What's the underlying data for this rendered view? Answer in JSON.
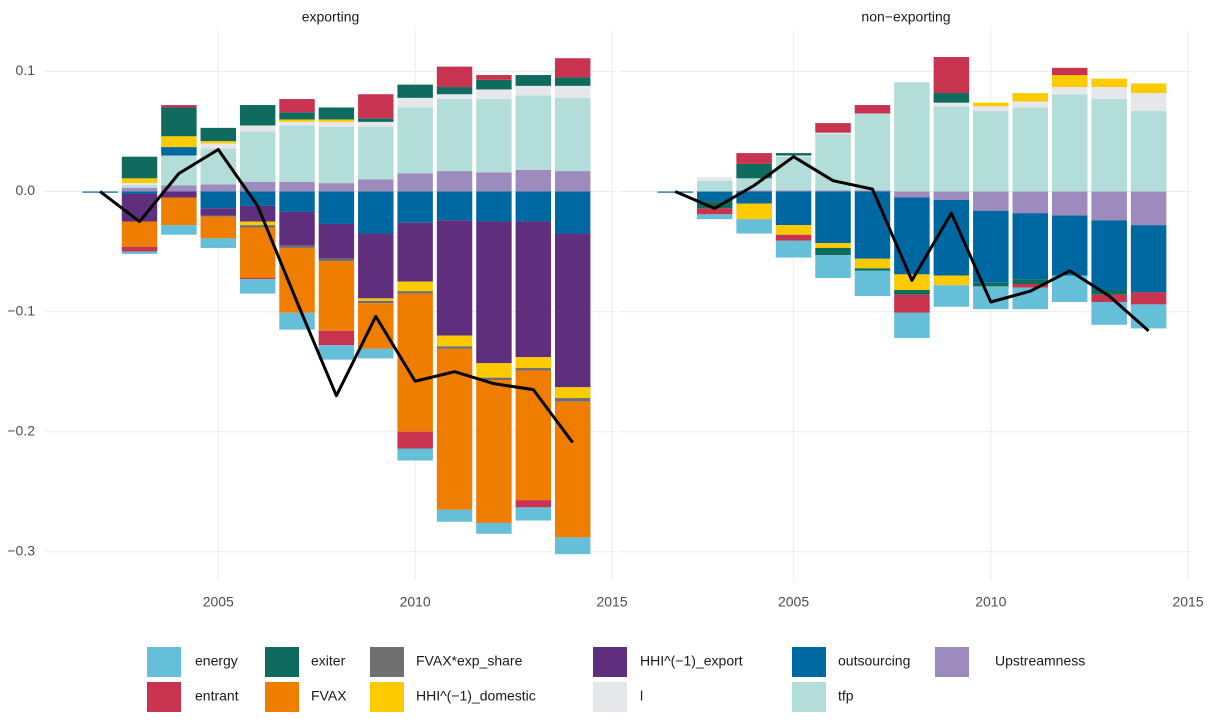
{
  "chart_data": [
    {
      "type": "bar",
      "stacked": true,
      "title": "exporting",
      "x": [
        2002,
        2003,
        2004,
        2005,
        2006,
        2007,
        2008,
        2009,
        2010,
        2011,
        2012,
        2013,
        2014
      ],
      "xlim": [
        2000.6,
        2015.1
      ],
      "xticks": [
        2005,
        2010,
        2015
      ],
      "ylim": [
        -0.3235,
        0.1345
      ],
      "yticks": [
        {
          "value": -0.3,
          "label": "−0.3"
        },
        {
          "value": -0.2,
          "label": "−0.2"
        },
        {
          "value": -0.1,
          "label": "−0.1"
        },
        {
          "value": 0,
          "label": "0.0"
        },
        {
          "value": 0.1,
          "label": "0.1"
        }
      ],
      "grid": true,
      "series": [
        {
          "name": "energy",
          "color": "#66bfd8",
          "values": [
            0,
            -0.002,
            -0.008,
            -0.008,
            -0.012,
            -0.014,
            -0.012,
            -0.008,
            -0.01,
            -0.01,
            -0.009,
            -0.011,
            -0.014
          ]
        },
        {
          "name": "entrant",
          "color": "#c8334f",
          "values": [
            0,
            -0.004,
            0.002,
            0,
            -0.001,
            0.011,
            -0.012,
            0.02,
            -0.014,
            0.017,
            0.004,
            -0.006,
            0.016
          ]
        },
        {
          "name": "exiter",
          "color": "#0e6b5e",
          "values": [
            0,
            0.018,
            0.024,
            0.011,
            0.017,
            0.006,
            0.01,
            0.003,
            0.011,
            0.006,
            0.008,
            0.009,
            0.007
          ]
        },
        {
          "name": "FVAX",
          "color": "#ee7d00",
          "values": [
            0,
            -0.021,
            -0.023,
            -0.018,
            -0.042,
            -0.054,
            -0.058,
            -0.038,
            -0.115,
            -0.134,
            -0.119,
            -0.108,
            -0.113
          ]
        },
        {
          "name": "FVAX*exp_share",
          "color": "#6f6f6f",
          "values": [
            0,
            0,
            0,
            -0.001,
            -0.002,
            -0.002,
            -0.002,
            -0.002,
            -0.002,
            -0.002,
            -0.002,
            -0.002,
            -0.003
          ]
        },
        {
          "name": "HHI^(−1)_domestic",
          "color": "#fbcb00",
          "values": [
            0,
            0.004,
            0.009,
            0.002,
            -0.003,
            0.002,
            0.002,
            -0.002,
            -0.008,
            -0.009,
            -0.012,
            -0.009,
            -0.009
          ]
        },
        {
          "name": "HHI^(−1)_export",
          "color": "#5f2f7d",
          "values": [
            0,
            -0.023,
            -0.005,
            -0.006,
            -0.013,
            -0.028,
            -0.029,
            -0.054,
            -0.049,
            -0.096,
            -0.118,
            -0.113,
            -0.128
          ]
        },
        {
          "name": "l",
          "color": "#e6e7ea",
          "values": [
            0,
            0.002,
            0,
            0.004,
            0.005,
            0.003,
            0.004,
            0.004,
            0.008,
            0.004,
            0.008,
            0.008,
            0.01
          ]
        },
        {
          "name": "outsourcing",
          "color": "#0068a1",
          "values": [
            -0.001,
            -0.002,
            0.007,
            -0.014,
            -0.012,
            -0.017,
            -0.027,
            -0.035,
            -0.026,
            -0.024,
            -0.025,
            -0.025,
            -0.035
          ]
        },
        {
          "name": "tfp",
          "color": "#b3ddd8",
          "values": [
            0,
            0.002,
            0.025,
            0.03,
            0.042,
            0.047,
            0.047,
            0.044,
            0.055,
            0.06,
            0.061,
            0.062,
            0.061
          ]
        },
        {
          "name": "Upstreamness",
          "color": "#9e8bbd",
          "values": [
            0,
            0.003,
            0.005,
            0.006,
            0.008,
            0.008,
            0.007,
            0.01,
            0.015,
            0.017,
            0.016,
            0.018,
            0.017
          ]
        }
      ],
      "total": {
        "color": "#000000",
        "values": [
          0,
          -0.025,
          0.015,
          0.035,
          -0.012,
          -0.092,
          -0.17,
          -0.104,
          -0.158,
          -0.15,
          -0.16,
          -0.165,
          -0.209
        ]
      }
    },
    {
      "type": "bar",
      "stacked": true,
      "title": "non−exporting",
      "x": [
        2002,
        2003,
        2004,
        2005,
        2006,
        2007,
        2008,
        2009,
        2010,
        2011,
        2012,
        2013,
        2014
      ],
      "xlim": [
        2000.6,
        2015.1
      ],
      "xticks": [
        2005,
        2010,
        2015
      ],
      "ylim": [
        -0.3235,
        0.1345
      ],
      "yticks": [
        {
          "value": -0.3,
          "label": "−0.3"
        },
        {
          "value": -0.2,
          "label": "−0.2"
        },
        {
          "value": -0.1,
          "label": "−0.1"
        },
        {
          "value": 0,
          "label": "0.0"
        },
        {
          "value": 0.1,
          "label": "0.1"
        }
      ],
      "grid": true,
      "series": [
        {
          "name": "energy",
          "color": "#66bfd8",
          "values": [
            0,
            -0.004,
            -0.012,
            -0.014,
            -0.019,
            -0.021,
            -0.021,
            -0.018,
            -0.019,
            -0.018,
            -0.022,
            -0.019,
            -0.02
          ]
        },
        {
          "name": "entrant",
          "color": "#c8334f",
          "values": [
            0,
            -0.005,
            0.009,
            -0.005,
            0.008,
            0.007,
            -0.015,
            0.03,
            0,
            -0.003,
            0.006,
            -0.006,
            -0.01
          ]
        },
        {
          "name": "exiter",
          "color": "#0e6b5e",
          "values": [
            0,
            -0.006,
            0.012,
            0.002,
            -0.006,
            -0.002,
            -0.004,
            0.008,
            -0.003,
            -0.004,
            0,
            -0.004,
            0
          ]
        },
        {
          "name": "FVAX",
          "color": "#ee7d00",
          "values": [
            0,
            0,
            0,
            0,
            0,
            0,
            0,
            0,
            0,
            0,
            0,
            0,
            0
          ]
        },
        {
          "name": "FVAX*exp_share",
          "color": "#6f6f6f",
          "values": [
            0,
            0,
            0,
            0,
            0,
            0,
            0,
            0,
            0,
            0,
            0,
            0,
            0
          ]
        },
        {
          "name": "HHI^(−1)_domestic",
          "color": "#fbcb00",
          "values": [
            0,
            0,
            -0.013,
            -0.008,
            -0.004,
            -0.008,
            -0.013,
            -0.008,
            0.003,
            0.007,
            0.01,
            0.007,
            0.008
          ]
        },
        {
          "name": "HHI^(−1)_export",
          "color": "#5f2f7d",
          "values": [
            0,
            0,
            0,
            0,
            0,
            0,
            0,
            0,
            0,
            0,
            0,
            0,
            0
          ]
        },
        {
          "name": "l",
          "color": "#e6e7ea",
          "values": [
            0,
            0.003,
            0,
            0.001,
            0.001,
            0,
            0,
            0.003,
            0.004,
            0.005,
            0.006,
            0.01,
            0.015
          ]
        },
        {
          "name": "outsourcing",
          "color": "#0068a1",
          "values": [
            -0.001,
            -0.008,
            -0.01,
            -0.028,
            -0.043,
            -0.056,
            -0.064,
            -0.063,
            -0.06,
            -0.055,
            -0.05,
            -0.058,
            -0.056
          ]
        },
        {
          "name": "tfp",
          "color": "#b3ddd8",
          "values": [
            0,
            0.009,
            0.01,
            0.028,
            0.047,
            0.064,
            0.091,
            0.071,
            0.067,
            0.07,
            0.081,
            0.077,
            0.067
          ]
        },
        {
          "name": "Upstreamness",
          "color": "#9e8bbd",
          "values": [
            0,
            0,
            0.001,
            0.001,
            0.001,
            0.001,
            -0.005,
            -0.007,
            -0.016,
            -0.018,
            -0.02,
            -0.024,
            -0.028
          ]
        }
      ],
      "total": {
        "color": "#000000",
        "values": [
          0,
          -0.014,
          0.005,
          0.029,
          0.009,
          0.002,
          -0.074,
          -0.018,
          -0.092,
          -0.083,
          -0.066,
          -0.087,
          -0.116
        ]
      }
    }
  ]
}
